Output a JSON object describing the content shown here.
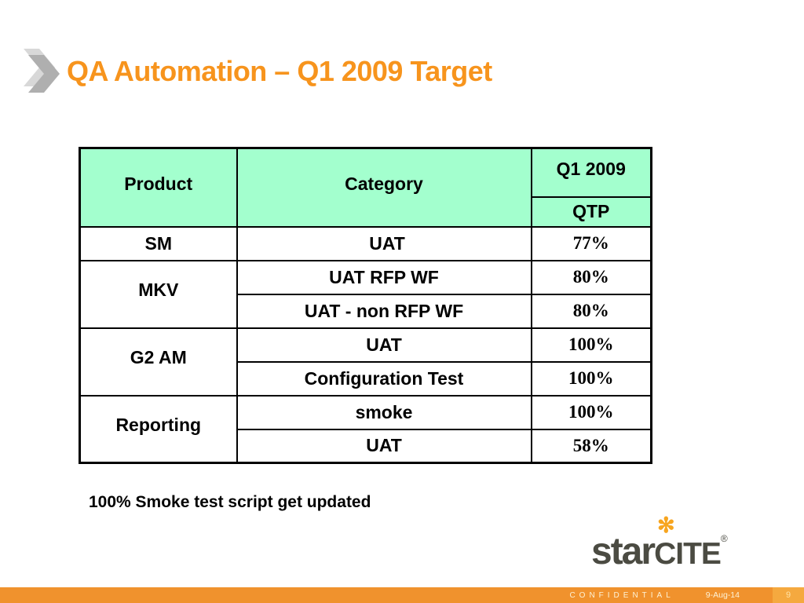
{
  "slide": {
    "title": "QA Automation – Q1 2009 Target",
    "note": "100% Smoke test script get updated"
  },
  "table": {
    "headers": {
      "product": "Product",
      "category": "Category",
      "quarter": "Q1 2009",
      "tool": "QTP"
    },
    "groups": [
      {
        "product": "SM",
        "rows": [
          {
            "category": "UAT",
            "category_align": "left",
            "qtp": "77%"
          }
        ]
      },
      {
        "product": "MKV",
        "rows": [
          {
            "category": "UAT RFP WF",
            "qtp": "80%"
          },
          {
            "category": "UAT - non RFP WF",
            "qtp": "80%"
          }
        ]
      },
      {
        "product": "G2 AM",
        "rows": [
          {
            "category": "UAT",
            "qtp": "100%"
          },
          {
            "category": "Configuration Test",
            "qtp": "100%"
          }
        ]
      },
      {
        "product": "Reporting",
        "rows": [
          {
            "category": "smoke",
            "qtp": "100%"
          },
          {
            "category": "UAT",
            "qtp": "58%"
          }
        ]
      }
    ]
  },
  "logo": {
    "star": "star",
    "cite": "CITE",
    "registered": "®",
    "asterisk": "✻"
  },
  "footer": {
    "confidential": "CONFIDENTIAL",
    "date": "9-Aug-14",
    "page": "9"
  },
  "colors": {
    "accent-orange": "#F7941D",
    "footer-orange": "#F0922D",
    "pagebox-orange": "#F5A93F",
    "table-green": "#A3FFCE",
    "logo-gray": "#4B4B42",
    "asterisk-orange": "#F7A51F",
    "chevron-gray": "#AFAFAF"
  }
}
